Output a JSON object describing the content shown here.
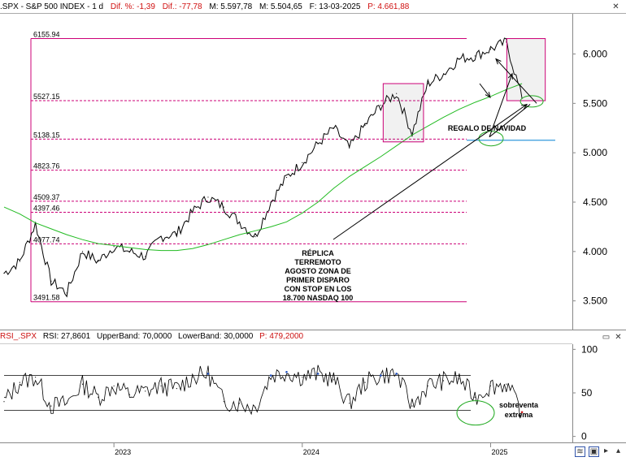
{
  "header": {
    "symbol": ".SPX - S&P 500 INDEX - 1 d",
    "dif_pct": "Dif. %: -1,39",
    "dif": "Dif.: -77,78",
    "price": "M: 5.597,78",
    "low": "M: 5.504,65",
    "date": "F: 13-03-2025",
    "p": "P: 4.661,88"
  },
  "rsi_header": {
    "name": "RSI_.SPX",
    "value": "RSI: 27,8601",
    "upper": "UpperBand: 70,0000",
    "lower": "LowerBand: 30,0000",
    "p": "P: 479,2000"
  },
  "colors": {
    "price_line": "#000000",
    "ma_line": "#22bb22",
    "level_line": "#cc0077",
    "frame": "#cc0077",
    "target_line": "#3399dd",
    "ellipse": "#22aa22",
    "rsi_line": "#000000",
    "rsi_overbought": "#1f4fbf",
    "rsi_oversold": "#cc1111",
    "band_line": "#444444"
  },
  "annotations": {
    "replica": [
      "RÉPLICA",
      "TERREMOTO",
      "AGOSTO ZONA DE",
      "PRIMER DISPARO",
      "CON STOP EN LOS",
      "18.700 NASDAQ 100"
    ],
    "regalo": "REGALO DE NAVIDAD",
    "sobreventa": [
      "sobreventa",
      "extrema"
    ]
  },
  "chart_data": [
    {
      "type": "line",
      "title": ".SPX - S&P 500 INDEX - 1 d",
      "x": [
        "2022-06",
        "2022-07",
        "2022-08",
        "2022-09",
        "2022-10",
        "2022-11",
        "2022-12",
        "2023-01",
        "2023-02",
        "2023-03",
        "2023-04",
        "2023-05",
        "2023-06",
        "2023-07",
        "2023-08",
        "2023-09",
        "2023-10",
        "2023-11",
        "2023-12",
        "2024-01",
        "2024-02",
        "2024-03",
        "2024-04",
        "2024-05",
        "2024-06",
        "2024-07",
        "2024-08",
        "2024-09",
        "2024-10",
        "2024-11",
        "2024-12",
        "2025-01",
        "2025-02",
        "2025-03"
      ],
      "series": [
        {
          "values": [
            3780,
            3900,
            4280,
            3700,
            3580,
            4000,
            3900,
            4050,
            4000,
            3950,
            4150,
            4180,
            4400,
            4550,
            4450,
            4300,
            4150,
            4500,
            4750,
            4900,
            5090,
            5250,
            5050,
            5280,
            5480,
            5600,
            5200,
            5700,
            5800,
            5950,
            5980,
            6050,
            6120,
            5550
          ]
        },
        {
          "values": [
            4450,
            4380,
            4290,
            4230,
            4170,
            4120,
            4080,
            4060,
            4040,
            4020,
            4010,
            4010,
            4030,
            4070,
            4120,
            4170,
            4210,
            4250,
            4300,
            4390,
            4500,
            4640,
            4760,
            4860,
            4960,
            5070,
            5180,
            5270,
            5360,
            5440,
            5510,
            5570,
            5640,
            5700
          ]
        }
      ],
      "levels": [
        6155.94,
        5527.15,
        5138.15,
        4823.76,
        4509.37,
        4397.46,
        4077.74,
        3491.58
      ],
      "level_labels": [
        "6155.94",
        "5527.15",
        "5138.15",
        "4823.76",
        "4509.37",
        "4397.46",
        "4077.74",
        "3491.58"
      ],
      "y_ticks": [
        "6.000",
        "5.500",
        "5.000",
        "4.500",
        "4.000",
        "3.500"
      ],
      "y_tick_values": [
        6000,
        5500,
        5000,
        4500,
        4000,
        3500
      ],
      "ylim": [
        3300,
        6300
      ],
      "target": 5127,
      "x_tick_labels": [
        "2023",
        "2024",
        "2025"
      ],
      "x_tick_dates": [
        "2023-01",
        "2024-01",
        "2025-01"
      ],
      "xlim": [
        "2022-06",
        "2025-06"
      ],
      "grid": false
    },
    {
      "type": "line",
      "title": "RSI_.SPX",
      "x": [
        "2022-06",
        "2022-07",
        "2022-08",
        "2022-09",
        "2022-10",
        "2022-11",
        "2022-12",
        "2023-01",
        "2023-02",
        "2023-03",
        "2023-04",
        "2023-05",
        "2023-06",
        "2023-07",
        "2023-08",
        "2023-09",
        "2023-10",
        "2023-11",
        "2023-12",
        "2024-01",
        "2024-02",
        "2024-03",
        "2024-04",
        "2024-05",
        "2024-06",
        "2024-07",
        "2024-08",
        "2024-09",
        "2024-10",
        "2024-11",
        "2024-12",
        "2025-01",
        "2025-02",
        "2025-03"
      ],
      "series": [
        {
          "values": [
            40,
            62,
            68,
            35,
            38,
            60,
            45,
            58,
            48,
            52,
            58,
            55,
            68,
            72,
            40,
            38,
            33,
            70,
            74,
            68,
            72,
            65,
            38,
            62,
            70,
            72,
            35,
            58,
            64,
            66,
            45,
            58,
            60,
            27.86
          ]
        }
      ],
      "bands": [
        70,
        30
      ],
      "y_ticks": [
        "100",
        "50",
        "0"
      ],
      "y_tick_values": [
        100,
        50,
        0
      ],
      "ylim": [
        -5,
        105
      ],
      "grid": false
    }
  ]
}
